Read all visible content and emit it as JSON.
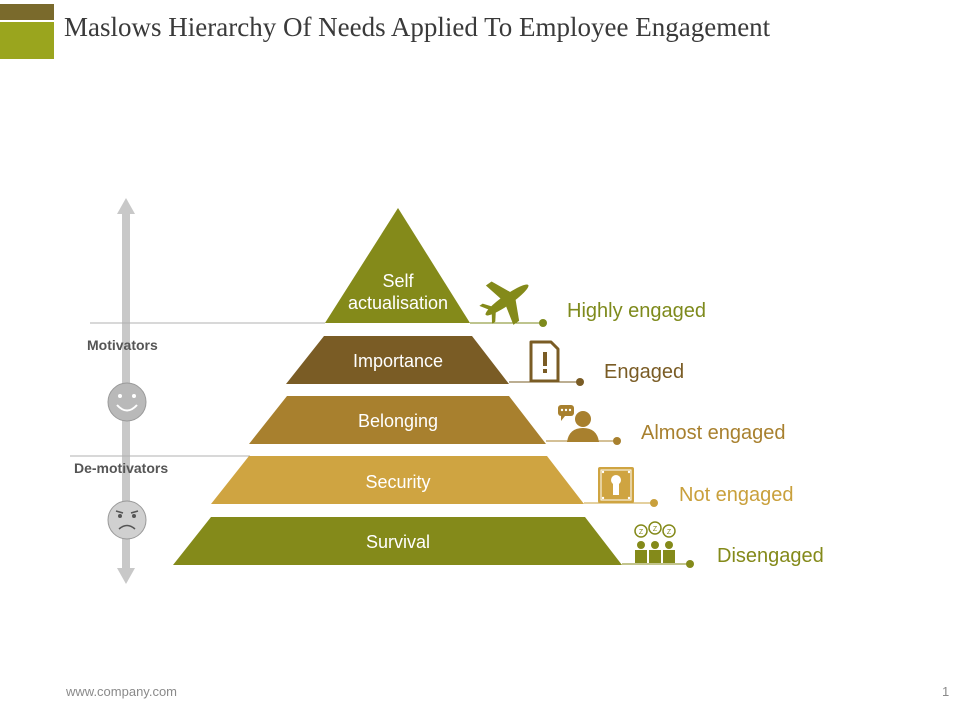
{
  "title": "Maslows Hierarchy Of Needs Applied To Employee Engagement",
  "footer": {
    "url": "www.company.com",
    "page_number": "1"
  },
  "side_labels": {
    "motivators": "Motivators",
    "demotivators": "De-motivators"
  },
  "levels": [
    {
      "label": "Self\nactualisation",
      "engagement": "Highly engaged",
      "icon": "airplane-icon",
      "color": "#848a1a",
      "engagement_color": "#7e8a1c"
    },
    {
      "label": "Importance",
      "engagement": "Engaged",
      "icon": "document-alert-icon",
      "color": "#7a5c25",
      "engagement_color": "#7a5c25"
    },
    {
      "label": "Belonging",
      "engagement": "Almost engaged",
      "icon": "person-chat-icon",
      "color": "#a8802e",
      "engagement_color": "#a8802e"
    },
    {
      "label": "Security",
      "engagement": "Not engaged",
      "icon": "lock-icon",
      "color": "#cfa441",
      "engagement_color": "#c9a03c"
    },
    {
      "label": "Survival",
      "engagement": "Disengaged",
      "icon": "sleeping-group-icon",
      "color": "#848a1a",
      "engagement_color": "#848a1a"
    }
  ],
  "colors": {
    "accent_dark": "#7a6a2c",
    "accent_light": "#9aa51e",
    "arrow": "#c8c8c8",
    "face": "#b9b9b9"
  }
}
